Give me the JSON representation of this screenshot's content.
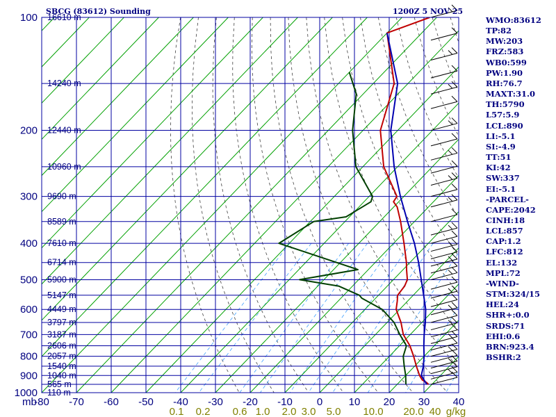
{
  "chart_data": {
    "type": "skew-t sounding",
    "title": "SBCG (83612) Sounding",
    "time_label": "1200Z  5 NOV 25",
    "pressure_unit": "mb",
    "pressure_ticks": [
      100,
      200,
      300,
      400,
      500,
      600,
      700,
      800,
      900,
      1000
    ],
    "pressure_range": [
      100,
      1000
    ],
    "temperature_ticks": [
      -80,
      -70,
      -60,
      -50,
      -40,
      -30,
      -20,
      -10,
      0,
      10,
      20,
      30,
      40
    ],
    "temperature_tick_labels": [
      "-80",
      "-70",
      "-60",
      "-50",
      "-40",
      "-30",
      "-20",
      "-10",
      "0",
      "10",
      "20",
      "30",
      "40"
    ],
    "mixing_ratio_labels": [
      "0.1",
      "0.2",
      "0.6",
      "1.0",
      "2.0",
      "3.0",
      "5.0",
      "10.0",
      "20.0",
      "40",
      "g/kg"
    ],
    "height_labels": [
      {
        "p": 100,
        "text": "16610 m"
      },
      {
        "p": 150,
        "text": "14240 m"
      },
      {
        "p": 200,
        "text": "12440 m"
      },
      {
        "p": 250,
        "text": "10960 m"
      },
      {
        "p": 300,
        "text": "9690 m"
      },
      {
        "p": 350,
        "text": "8589 m"
      },
      {
        "p": 400,
        "text": "7610 m"
      },
      {
        "p": 450,
        "text": "6714 m"
      },
      {
        "p": 500,
        "text": "5900 m"
      },
      {
        "p": 550,
        "text": "5147 m"
      },
      {
        "p": 600,
        "text": "4449 m"
      },
      {
        "p": 650,
        "text": "3797 m"
      },
      {
        "p": 700,
        "text": "3187 m"
      },
      {
        "p": 750,
        "text": "2606 m"
      },
      {
        "p": 800,
        "text": "2057 m"
      },
      {
        "p": 850,
        "text": "1540 m"
      },
      {
        "p": 900,
        "text": "1040 m"
      },
      {
        "p": 950,
        "text": "565 m"
      },
      {
        "p": 1000,
        "text": "110 m"
      }
    ],
    "series": [
      {
        "name": "temperature",
        "color": "#c00000",
        "points": [
          [
            100,
            -72
          ],
          [
            110,
            -80
          ],
          [
            150,
            -64
          ],
          [
            200,
            -55
          ],
          [
            250,
            -44
          ],
          [
            300,
            -32
          ],
          [
            310,
            -31.5
          ],
          [
            320,
            -29
          ],
          [
            350,
            -24
          ],
          [
            400,
            -17
          ],
          [
            450,
            -11
          ],
          [
            470,
            -9
          ],
          [
            500,
            -6
          ],
          [
            520,
            -5
          ],
          [
            550,
            -4.5
          ],
          [
            570,
            -3
          ],
          [
            600,
            -1
          ],
          [
            650,
            4
          ],
          [
            700,
            8
          ],
          [
            750,
            13
          ],
          [
            800,
            17
          ],
          [
            850,
            20.5
          ],
          [
            900,
            24
          ],
          [
            925,
            26
          ],
          [
            940,
            28
          ],
          [
            950,
            29
          ]
        ]
      },
      {
        "name": "dewpoint",
        "color": "#004000",
        "points": [
          [
            140,
            -80
          ],
          [
            160,
            -72
          ],
          [
            200,
            -63
          ],
          [
            250,
            -52
          ],
          [
            300,
            -39
          ],
          [
            310,
            -38
          ],
          [
            340,
            -41
          ],
          [
            350,
            -49
          ],
          [
            400,
            -53
          ],
          [
            470,
            -23
          ],
          [
            500,
            -37
          ],
          [
            520,
            -24
          ],
          [
            550,
            -15.5
          ],
          [
            560,
            -14
          ],
          [
            600,
            -5
          ],
          [
            650,
            2
          ],
          [
            700,
            7
          ],
          [
            750,
            12
          ],
          [
            800,
            14
          ],
          [
            850,
            17
          ],
          [
            900,
            20
          ],
          [
            950,
            22.5
          ]
        ]
      },
      {
        "name": "parcel",
        "color": "#0000b0",
        "points": [
          [
            110,
            -80
          ],
          [
            150,
            -63
          ],
          [
            200,
            -52
          ],
          [
            250,
            -41
          ],
          [
            300,
            -31
          ],
          [
            350,
            -22
          ],
          [
            400,
            -14
          ],
          [
            450,
            -7.5
          ],
          [
            500,
            -2
          ],
          [
            550,
            3
          ],
          [
            600,
            7.5
          ],
          [
            650,
            11
          ],
          [
            700,
            14
          ],
          [
            750,
            17
          ],
          [
            800,
            20
          ],
          [
            850,
            22.5
          ],
          [
            900,
            24.5
          ],
          [
            950,
            28.5
          ]
        ]
      }
    ],
    "wind_barb_pressures": [
      100,
      115,
      130,
      145,
      160,
      175,
      200,
      220,
      240,
      260,
      280,
      300,
      320,
      350,
      380,
      400,
      420,
      440,
      460,
      480,
      500,
      530,
      560,
      590,
      620,
      650,
      680,
      710,
      740,
      770,
      800,
      830,
      860,
      890,
      920,
      950
    ]
  },
  "stats": [
    "WMO:83612",
    "TP:82",
    "MW:203",
    "FRZ:583",
    "WB0:599",
    "PW:1.90",
    "RH:76.7",
    "MAXT:31.0",
    "TH:5790",
    "L57:5.9",
    "LCL:890",
    "LI:-5.1",
    "SI:-4.9",
    "TT:51",
    "KI:42",
    "SW:337",
    "EI:-5.1",
    "-PARCEL-",
    "CAPE:2042",
    "CINH:18",
    "LCL:857",
    "CAP:1.2",
    "LFC:812",
    "EL:132",
    "MPL:72",
    "-WIND-",
    "STM:324/15",
    "HEL:24",
    "SHR+:0.0",
    "SRDS:71",
    "EHI:0.6",
    "BRN:923.4",
    "BSHR:2"
  ],
  "colors": {
    "grid": "#0000a0",
    "isotherm": "#00a000",
    "adiabat": "#404040",
    "mixing_ratio": "#40a0ff",
    "text": "#000080"
  }
}
